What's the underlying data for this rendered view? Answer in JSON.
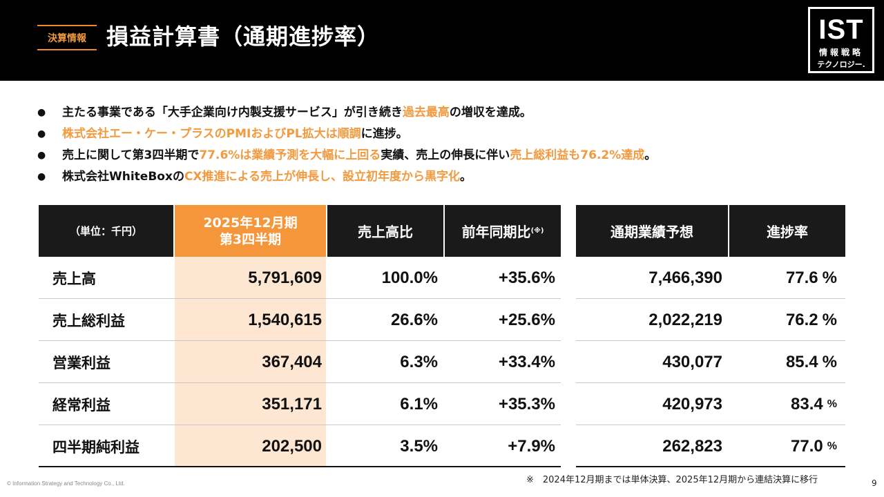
{
  "header": {
    "tag": "決算情報",
    "title": "損益計算書（通期進捗率）",
    "logo_main": "IST",
    "logo_sub1": "情報戦略",
    "logo_sub2": "テクノロジー."
  },
  "bullets": [
    {
      "parts": [
        {
          "t": "主たる事業である「大手企業向け内製支援サービス」が引き続き",
          "hl": false
        },
        {
          "t": "過去最高",
          "hl": true
        },
        {
          "t": "の増収を達成。",
          "hl": false
        }
      ]
    },
    {
      "parts": [
        {
          "t": "株式会社エー・ケー・プラスのPMIおよびPL拡大は順調",
          "hl": true
        },
        {
          "t": "に進捗。",
          "hl": false
        }
      ]
    },
    {
      "parts": [
        {
          "t": "売上に関して第3四半期で",
          "hl": false
        },
        {
          "t": "77.6%は業績予測を大幅に上回る",
          "hl": true
        },
        {
          "t": "実績、売上の伸長に伴い",
          "hl": false
        },
        {
          "t": "売上総利益も76.2%達成",
          "hl": true
        },
        {
          "t": "。",
          "hl": false
        }
      ]
    },
    {
      "parts": [
        {
          "t": "株式会社WhiteBoxの",
          "hl": false
        },
        {
          "t": "CX推進による売上が伸長し、設立初年度から黒字化",
          "hl": true
        },
        {
          "t": "。",
          "hl": false
        }
      ]
    }
  ],
  "table": {
    "h_unit": "（単位：千円）",
    "h_period_1": "2025年12月期",
    "h_period_2": "第3四半期",
    "h_ratio": "売上高比",
    "h_yoy": "前年同期比",
    "h_yoy_note": "(※)",
    "h_forecast": "通期業績予想",
    "h_progress": "進捗率",
    "rows": [
      {
        "label": "売上高",
        "q3": "5,791,609",
        "ratio": "100.0%",
        "yoy": "+35.6%",
        "forecast": "7,466,390",
        "progress": "77.6",
        "unit": "%"
      },
      {
        "label": "売上総利益",
        "q3": "1,540,615",
        "ratio": "26.6%",
        "yoy": "+25.6%",
        "forecast": "2,022,219",
        "progress": "76.2",
        "unit": "%"
      },
      {
        "label": "営業利益",
        "q3": "367,404",
        "ratio": "6.3%",
        "yoy": "+33.4%",
        "forecast": "430,077",
        "progress": "85.4",
        "unit": "%"
      },
      {
        "label": "経常利益",
        "q3": "351,171",
        "ratio": "6.1%",
        "yoy": "+35.3%",
        "forecast": "420,973",
        "progress": "83.4",
        "unit": "%"
      },
      {
        "label": "四半期純利益",
        "q3": "202,500",
        "ratio": "3.5%",
        "yoy": "+7.9%",
        "forecast": "262,823",
        "progress": "77.0",
        "unit": "%"
      }
    ]
  },
  "footnote": "※　2024年12月期までは単体決算、2025年12月期から連結決算に移行",
  "copyright": "© Information Strategy and Technology Co., Ltd.",
  "page_number": "9",
  "colors": {
    "accent": "#f29a3f",
    "header_bg": "#000000",
    "highlight_col": "#fde7d2"
  }
}
